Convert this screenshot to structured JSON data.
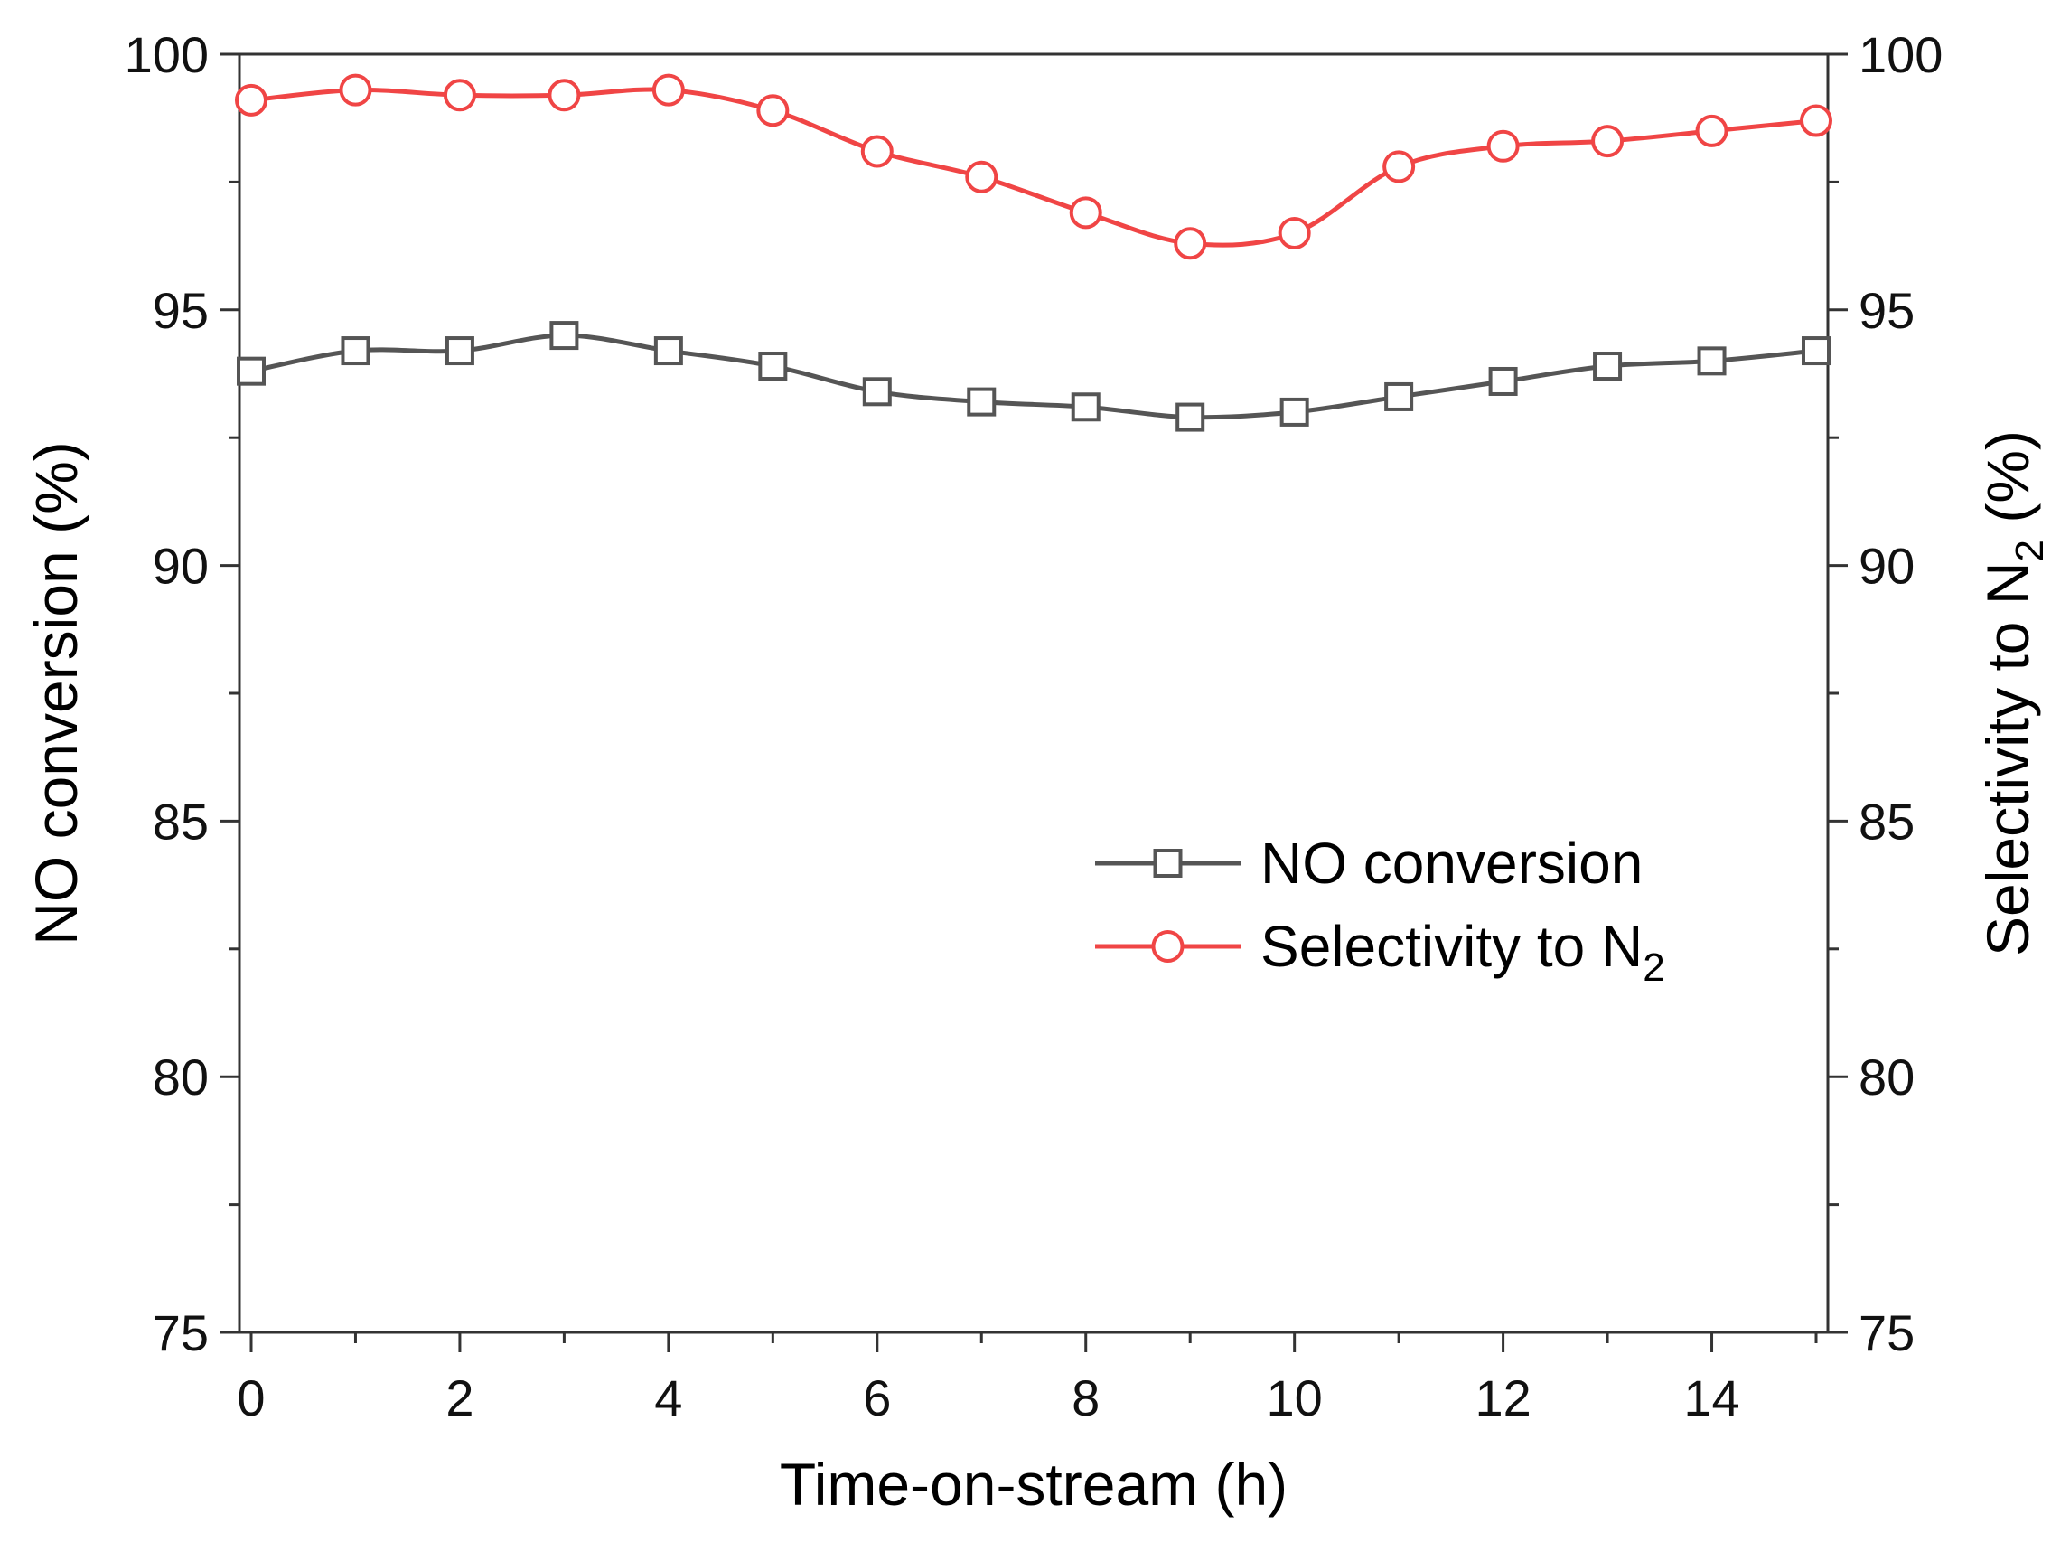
{
  "chart_data": {
    "type": "line",
    "title": "",
    "xlabel": "Time-on-stream (h)",
    "ylabel_left": "NO conversion (%)",
    "ylabel_right": {
      "base": "Selectivity to N",
      "subscript": "2",
      "suffix": " (%)"
    },
    "xlim": [
      0,
      15
    ],
    "ylim": [
      75,
      100
    ],
    "x_ticks": [
      0,
      2,
      4,
      6,
      8,
      10,
      12,
      14
    ],
    "y_ticks": [
      75,
      80,
      85,
      90,
      95,
      100
    ],
    "grid": false,
    "legend_position": "center-right",
    "x": [
      0,
      1,
      2,
      3,
      4,
      5,
      6,
      7,
      8,
      9,
      10,
      11,
      12,
      13,
      14,
      15
    ],
    "series": [
      {
        "name": "NO conversion",
        "name_subscript": "",
        "marker": "square",
        "color": "#555555",
        "axis": "left",
        "values": [
          93.8,
          94.2,
          94.2,
          94.5,
          94.2,
          93.9,
          93.4,
          93.2,
          93.1,
          92.9,
          93.0,
          93.3,
          93.6,
          93.9,
          94.0,
          94.2
        ]
      },
      {
        "name": "Selectivity to N",
        "name_subscript": "2",
        "marker": "circle",
        "color": "#f04545",
        "axis": "right",
        "values": [
          99.1,
          99.3,
          99.2,
          99.2,
          99.3,
          98.9,
          98.1,
          97.6,
          96.9,
          96.3,
          96.5,
          97.8,
          98.2,
          98.3,
          98.5,
          98.7
        ]
      }
    ]
  }
}
